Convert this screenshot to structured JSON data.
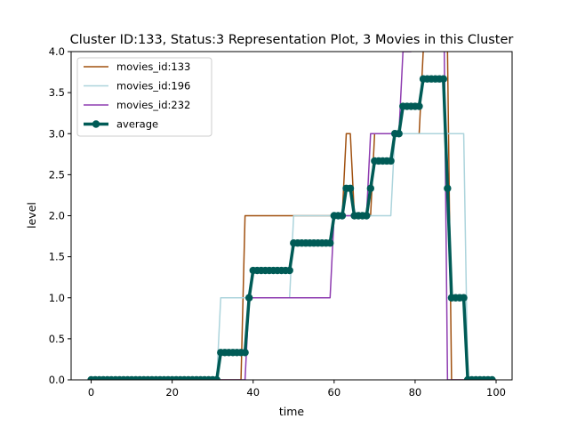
{
  "chart_data": {
    "type": "line",
    "title": "Cluster ID:133, Status:3 Representation Plot, 3 Movies in this Cluster",
    "xlabel": "time",
    "ylabel": "level",
    "xlim": [
      -4.95,
      103.95
    ],
    "ylim": [
      0,
      4.0
    ],
    "x_ticks": [
      0,
      20,
      40,
      60,
      80,
      100
    ],
    "y_ticks": [
      0.0,
      0.5,
      1.0,
      1.5,
      2.0,
      2.5,
      3.0,
      3.5,
      4.0
    ],
    "y_tick_labels": [
      "0.0",
      "0.5",
      "1.0",
      "1.5",
      "2.0",
      "2.5",
      "3.0",
      "3.5",
      "4.0"
    ],
    "grid": false,
    "legend_position": "top-left",
    "series": [
      {
        "name": "movies_id:133",
        "color": "#a0500f",
        "style": "line",
        "steps": [
          [
            0,
            0
          ],
          [
            38,
            2
          ],
          [
            63,
            3
          ],
          [
            65,
            2
          ],
          [
            70,
            3
          ],
          [
            79,
            3
          ],
          [
            82,
            4
          ],
          [
            83,
            5
          ],
          [
            86,
            5
          ],
          [
            88,
            4
          ],
          [
            89,
            0
          ],
          [
            99,
            0
          ]
        ]
      },
      {
        "name": "movies_id:196",
        "color": "#acd4dc",
        "style": "line",
        "steps": [
          [
            0,
            0
          ],
          [
            32,
            1
          ],
          [
            50,
            2
          ],
          [
            75,
            3
          ],
          [
            93,
            0
          ],
          [
            99,
            0
          ]
        ]
      },
      {
        "name": "movies_id:232",
        "color": "#8e3bb0",
        "style": "line",
        "steps": [
          [
            0,
            0
          ],
          [
            39,
            1
          ],
          [
            60,
            2
          ],
          [
            69,
            3
          ],
          [
            77,
            4
          ],
          [
            80,
            5
          ],
          [
            87,
            5
          ],
          [
            88,
            0
          ],
          [
            99,
            0
          ]
        ]
      },
      {
        "name": "average",
        "color": "#005b56",
        "style": "line-marker",
        "steps": [
          [
            0,
            0
          ],
          [
            32,
            0.333
          ],
          [
            39,
            1
          ],
          [
            40,
            1.333
          ],
          [
            50,
            1.667
          ],
          [
            60,
            2
          ],
          [
            62,
            2
          ],
          [
            63,
            2.333
          ],
          [
            65,
            2
          ],
          [
            69,
            2.333
          ],
          [
            70,
            2.667
          ],
          [
            75,
            3
          ],
          [
            77,
            3.333
          ],
          [
            80,
            3.333
          ],
          [
            82,
            3.667
          ],
          [
            83,
            3.667
          ],
          [
            86,
            3.667
          ],
          [
            87,
            3.667
          ],
          [
            88,
            2.333
          ],
          [
            89,
            1
          ],
          [
            93,
            0
          ],
          [
            99,
            0
          ]
        ]
      }
    ]
  }
}
